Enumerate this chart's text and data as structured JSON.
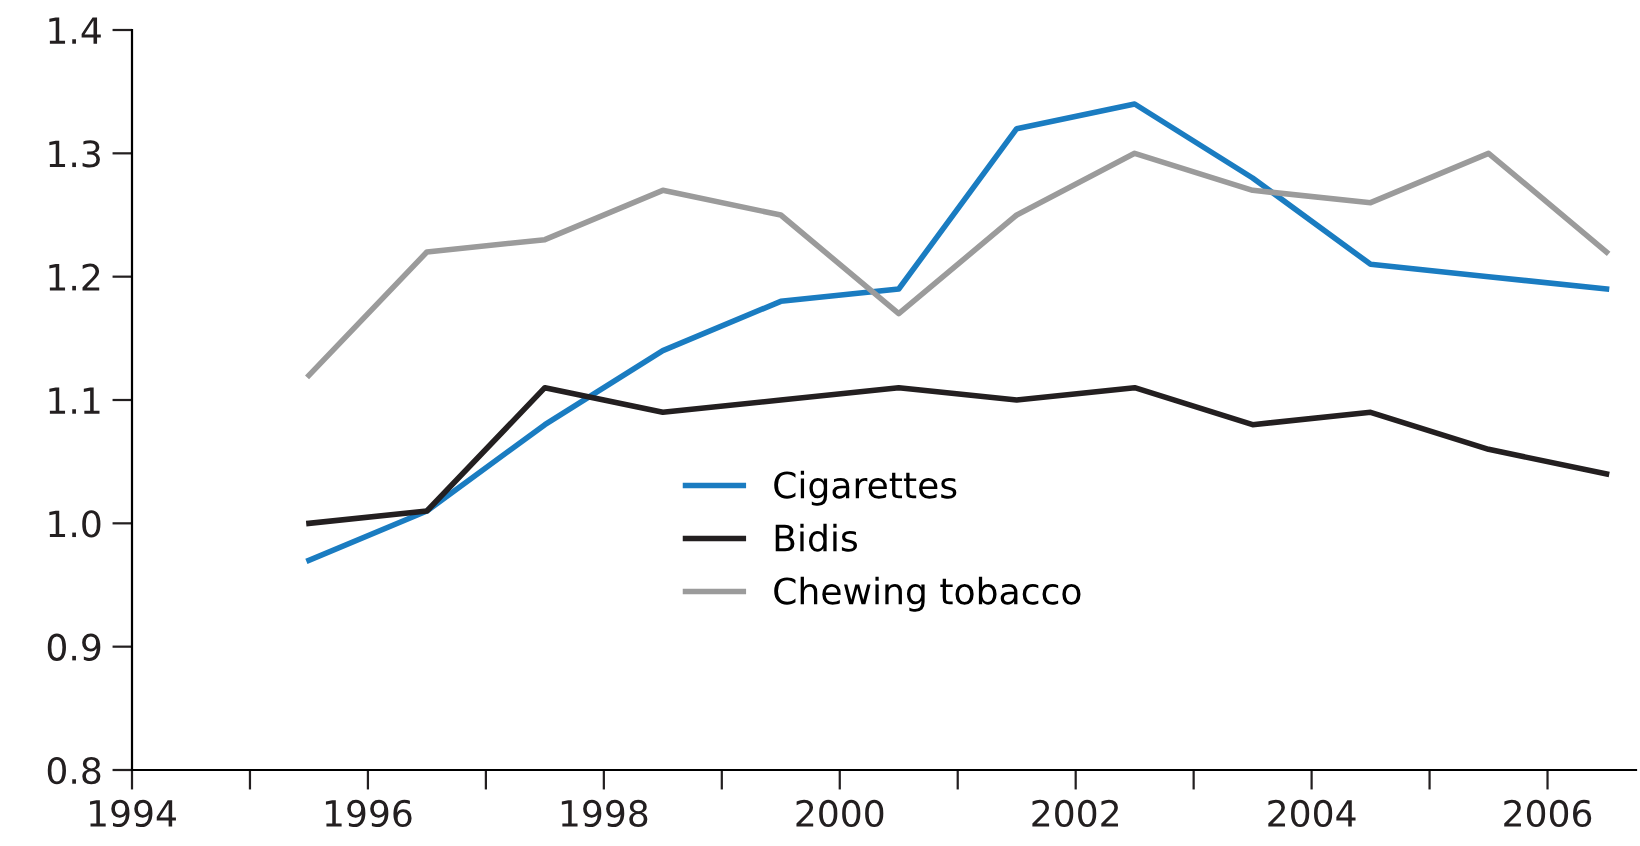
{
  "chart_data": {
    "type": "line",
    "x": [
      1995.5,
      1996.5,
      1997.5,
      1998.5,
      1999.5,
      2000.5,
      2001.5,
      2002.5,
      2003.5,
      2004.5,
      2005.5,
      2006.5
    ],
    "series": [
      {
        "name": "Cigarettes",
        "color": "#1a7cc1",
        "values": [
          0.97,
          1.01,
          1.08,
          1.14,
          1.18,
          1.19,
          1.32,
          1.34,
          1.28,
          1.21,
          1.2,
          1.19
        ]
      },
      {
        "name": "Bidis",
        "color": "#231f20",
        "values": [
          1.0,
          1.01,
          1.11,
          1.09,
          1.1,
          1.11,
          1.1,
          1.11,
          1.08,
          1.09,
          1.06,
          1.04
        ]
      },
      {
        "name": "Chewing tobacco",
        "color": "#9b9b9b",
        "values": [
          1.12,
          1.22,
          1.23,
          1.27,
          1.25,
          1.17,
          1.25,
          1.3,
          1.27,
          1.26,
          1.3,
          1.22
        ]
      }
    ],
    "xlim": [
      1994,
      2006.75
    ],
    "xticks": [
      1994,
      {
        "value": 1995,
        "label": null
      },
      1996,
      {
        "value": 1997,
        "label": null
      },
      1998,
      {
        "value": 1999,
        "label": null
      },
      2000,
      {
        "value": 2001,
        "label": null
      },
      2002,
      {
        "value": 2003,
        "label": null
      },
      2004,
      {
        "value": 2005,
        "label": null
      },
      2006
    ],
    "ylim": [
      0.8,
      1.4
    ],
    "yticks": [
      {
        "value": 0.8,
        "label": "0.8"
      },
      {
        "value": 0.9,
        "label": "0.9"
      },
      {
        "value": 1.0,
        "label": "1.0"
      },
      {
        "value": 1.1,
        "label": "1.1"
      },
      {
        "value": 1.2,
        "label": "1.2"
      },
      {
        "value": 1.3,
        "label": "1.3"
      },
      {
        "value": 1.4,
        "label": "1.4"
      }
    ],
    "grid": false,
    "legend": "bottom",
    "marker": "none",
    "line_style": "solid"
  }
}
